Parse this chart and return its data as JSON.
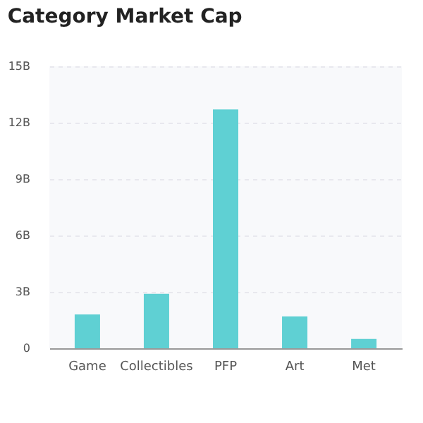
{
  "chart_data": {
    "type": "bar",
    "title": "Category Market Cap",
    "categories": [
      "Game",
      "Collectibles",
      "PFP",
      "Art",
      "Met"
    ],
    "values": [
      1.8,
      2.9,
      12.7,
      1.7,
      0.5
    ],
    "color": "#5fd0d3",
    "ylim": [
      0,
      15
    ],
    "yticks": [
      {
        "value": 0,
        "label": "0"
      },
      {
        "value": 3,
        "label": "3B"
      },
      {
        "value": 6,
        "label": "6B"
      },
      {
        "value": 9,
        "label": "9B"
      },
      {
        "value": 12,
        "label": "12B"
      },
      {
        "value": 15,
        "label": "15B"
      }
    ],
    "grid": "y"
  }
}
